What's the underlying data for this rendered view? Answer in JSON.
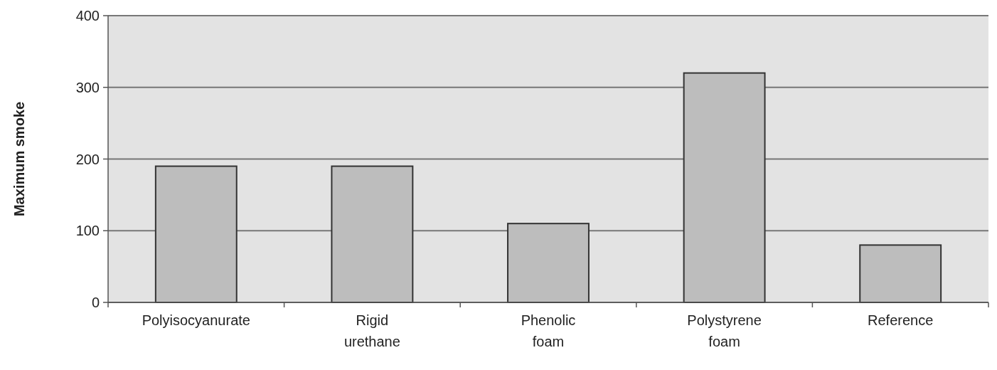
{
  "chart_data": {
    "type": "bar",
    "ylabel": "Maximum smoke",
    "categories": [
      "Polyisocyanurate",
      "Rigid urethane",
      "Phenolic foam",
      "Polystyrene foam",
      "Reference"
    ],
    "values": [
      190,
      190,
      110,
      320,
      80
    ],
    "color": "#bdbdbd",
    "ylim": [
      0,
      400
    ],
    "yticks": [
      0,
      100,
      200,
      300,
      400
    ],
    "grid": "y"
  }
}
